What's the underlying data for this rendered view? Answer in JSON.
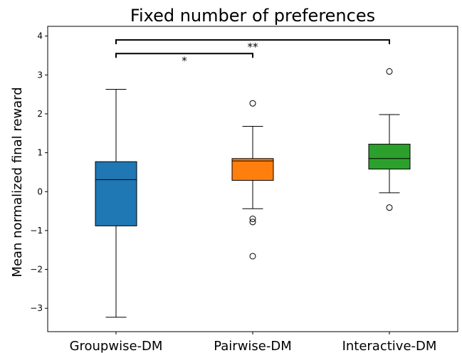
{
  "chart_data": {
    "type": "box",
    "title": "Fixed number of preferences",
    "ylabel": "Mean normalized final reward",
    "xlabel": "",
    "ylim": [
      -3.6,
      4.25
    ],
    "yticks": [
      -3,
      -2,
      -1,
      0,
      1,
      2,
      3,
      4
    ],
    "ytick_labels": [
      "−3",
      "−2",
      "−1",
      "0",
      "1",
      "2",
      "3",
      "4"
    ],
    "grid": false,
    "categories": [
      "Groupwise-DM",
      "Pairwise-DM",
      "Interactive-DM"
    ],
    "boxes": [
      {
        "category": "Groupwise-DM",
        "color": "#1f77b4",
        "whisker_low": -3.23,
        "q1": -0.88,
        "median": 0.31,
        "q3": 0.77,
        "whisker_high": 2.63,
        "outliers": []
      },
      {
        "category": "Pairwise-DM",
        "color": "#ff7f0e",
        "whisker_low": -0.44,
        "q1": 0.29,
        "median": 0.79,
        "q3": 0.85,
        "whisker_high": 1.68,
        "outliers": [
          2.27,
          -0.7,
          -0.78,
          -1.66
        ]
      },
      {
        "category": "Interactive-DM",
        "color": "#2ca02c",
        "whisker_low": -0.03,
        "q1": 0.58,
        "median": 0.85,
        "q3": 1.22,
        "whisker_high": 1.98,
        "outliers": [
          3.09,
          -0.41
        ]
      }
    ],
    "significance": [
      {
        "from": "Groupwise-DM",
        "to": "Pairwise-DM",
        "label": "*",
        "y": 3.55
      },
      {
        "from": "Groupwise-DM",
        "to": "Interactive-DM",
        "label": "**",
        "y": 3.9
      }
    ]
  }
}
